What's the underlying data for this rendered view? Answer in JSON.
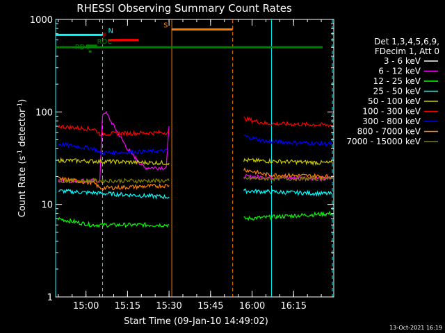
{
  "chart_data": {
    "type": "line",
    "title": "RHESSI Observing Summary Count Rates",
    "xlabel": "Start Time (09-Jan-10 14:49:02)",
    "ylabel_main": "Count Rate (s",
    "ylabel_exp1": "-1",
    "ylabel_mid": " detector",
    "ylabel_exp2": "-1",
    "ylabel_end": ")",
    "yscale": "log",
    "ylim": [
      1,
      1000
    ],
    "xlim": [
      "14:49:02",
      "16:29:30"
    ],
    "xticks": [
      "15:00",
      "15:15",
      "15:30",
      "15:45",
      "16:00",
      "16:15"
    ],
    "yticks": [
      "1",
      "10",
      "100",
      "1000"
    ],
    "timestamp": "13-Oct-2021 16:19",
    "legend": {
      "position": "right",
      "header": [
        "Det 1,3,4,5,6,9,",
        "FDecim 1, Att 0"
      ],
      "entries": [
        {
          "label": "3 - 6 keV",
          "color": "#000000"
        },
        {
          "label": "6 - 12 keV",
          "color": "#ff00ff"
        },
        {
          "label": "12 - 25 keV",
          "color": "#00ff00"
        },
        {
          "label": "25 - 50 keV",
          "color": "#00ffff"
        },
        {
          "label": "50 - 100 keV",
          "color": "#cccc00"
        },
        {
          "label": "100 - 300 keV",
          "color": "#ff0000"
        },
        {
          "label": "300 - 800 keV",
          "color": "#0000ff"
        },
        {
          "label": "800 - 7000 keV",
          "color": "#ff8000"
        },
        {
          "label": "7000 - 15000 keV",
          "color": "#808000"
        }
      ]
    },
    "flags": [
      {
        "label": "N",
        "color": "#00ffff",
        "y": 680
      },
      {
        "label": "F",
        "color": "#ff0000",
        "y": 600
      },
      {
        "label": "S",
        "color": "#ff8000",
        "y": 780
      },
      {
        "label": "RDC",
        "color": "#008000",
        "y": 520
      },
      {
        "label": "RD4",
        "color": "#008000",
        "y": 450
      }
    ],
    "series": [
      {
        "name": "3 - 6 keV",
        "color": "#000000",
        "segments": [
          [
            [
              "14:50",
              16
            ],
            [
              "15:05",
              17
            ],
            [
              "15:06",
              100
            ],
            [
              "15:07",
              110
            ],
            [
              "15:15",
              50
            ],
            [
              "15:22",
              30
            ],
            [
              "15:29",
              28
            ],
            [
              "15:30",
              90
            ]
          ],
          [
            [
              "15:57",
              17
            ],
            [
              "16:29",
              17
            ]
          ]
        ]
      },
      {
        "name": "6 - 12 keV",
        "color": "#ff00ff",
        "segments": [
          [
            [
              "14:50",
              18
            ],
            [
              "15:05",
              18
            ],
            [
              "15:06",
              95
            ],
            [
              "15:07",
              100
            ],
            [
              "15:15",
              40
            ],
            [
              "15:21",
              25
            ],
            [
              "15:29",
              25
            ],
            [
              "15:30",
              70
            ]
          ],
          [
            [
              "15:57",
              20
            ],
            [
              "16:29",
              19
            ]
          ]
        ]
      },
      {
        "name": "12 - 25 keV",
        "color": "#00ff00",
        "segments": [
          [
            [
              "14:50",
              7
            ],
            [
              "15:02",
              6
            ],
            [
              "15:30",
              6
            ]
          ],
          [
            [
              "15:57",
              7
            ],
            [
              "16:29",
              8
            ]
          ]
        ]
      },
      {
        "name": "25 - 50 keV",
        "color": "#00ffff",
        "segments": [
          [
            [
              "14:50",
              14
            ],
            [
              "15:30",
              12
            ]
          ],
          [
            [
              "15:57",
              14
            ],
            [
              "16:29",
              13
            ]
          ]
        ]
      },
      {
        "name": "50 - 100 keV",
        "color": "#cccc00",
        "segments": [
          [
            [
              "14:50",
              30
            ],
            [
              "15:30",
              28
            ]
          ],
          [
            [
              "15:57",
              30
            ],
            [
              "16:29",
              28
            ]
          ]
        ]
      },
      {
        "name": "100 - 300 keV",
        "color": "#ff0000",
        "segments": [
          [
            [
              "14:50",
              70
            ],
            [
              "15:03",
              65
            ],
            [
              "15:05",
              58
            ],
            [
              "15:30",
              60
            ]
          ],
          [
            [
              "15:57",
              85
            ],
            [
              "16:05",
              75
            ],
            [
              "16:29",
              72
            ]
          ]
        ]
      },
      {
        "name": "300 - 800 keV",
        "color": "#0000ff",
        "segments": [
          [
            [
              "14:50",
              45
            ],
            [
              "15:03",
              40
            ],
            [
              "15:05",
              36
            ],
            [
              "15:30",
              38
            ]
          ],
          [
            [
              "15:57",
              55
            ],
            [
              "16:05",
              48
            ],
            [
              "16:29",
              45
            ]
          ]
        ]
      },
      {
        "name": "800 - 7000 keV",
        "color": "#ff8000",
        "segments": [
          [
            [
              "14:50",
              19
            ],
            [
              "15:03",
              17
            ],
            [
              "15:05",
              15
            ],
            [
              "15:30",
              16
            ]
          ],
          [
            [
              "15:57",
              24
            ],
            [
              "16:05",
              21
            ],
            [
              "16:29",
              20
            ]
          ]
        ]
      },
      {
        "name": "7000 - 15000 keV",
        "color": "#808000",
        "segments": [
          [
            [
              "14:50",
              18
            ],
            [
              "15:30",
              18
            ]
          ],
          [
            [
              "15:57",
              19
            ],
            [
              "16:29",
              19
            ]
          ]
        ]
      }
    ]
  }
}
